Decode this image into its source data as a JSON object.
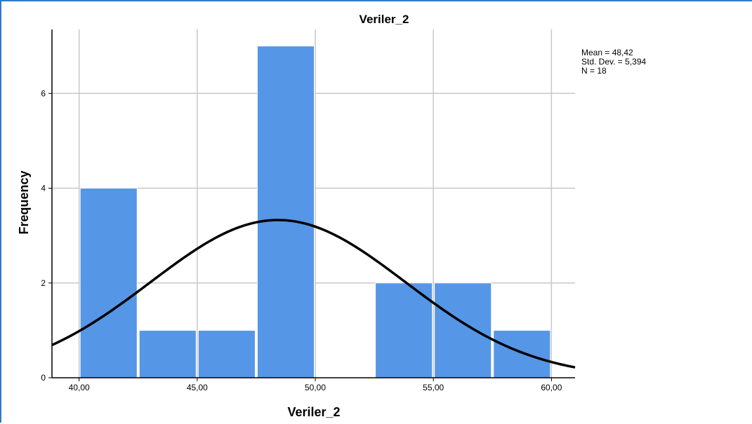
{
  "chart_data": {
    "type": "bar",
    "title": "Veriler_2",
    "xlabel": "Veriler_2",
    "ylabel": "Frequency",
    "xlim": [
      38.85,
      61.0
    ],
    "ylim": [
      0,
      7.35
    ],
    "x_ticks": [
      {
        "value": 40,
        "label": "40,00"
      },
      {
        "value": 45,
        "label": "45,00"
      },
      {
        "value": 50,
        "label": "50,00"
      },
      {
        "value": 55,
        "label": "55,00"
      },
      {
        "value": 60,
        "label": "60,00"
      }
    ],
    "y_ticks": [
      {
        "value": 0,
        "label": "0"
      },
      {
        "value": 2,
        "label": "2"
      },
      {
        "value": 4,
        "label": "4"
      },
      {
        "value": 6,
        "label": "6"
      }
    ],
    "bins": [
      {
        "start": 40.0,
        "end": 42.5,
        "count": 4
      },
      {
        "start": 42.5,
        "end": 45.0,
        "count": 1
      },
      {
        "start": 45.0,
        "end": 47.5,
        "count": 1
      },
      {
        "start": 47.5,
        "end": 50.0,
        "count": 7
      },
      {
        "start": 50.0,
        "end": 52.5,
        "count": 0
      },
      {
        "start": 52.5,
        "end": 55.0,
        "count": 2
      },
      {
        "start": 55.0,
        "end": 57.5,
        "count": 2
      },
      {
        "start": 57.5,
        "end": 60.0,
        "count": 1
      }
    ],
    "normal_curve": {
      "mean": 48.42,
      "std_dev": 5.394,
      "n": 18,
      "bin_width": 2.5
    },
    "stats_lines": [
      "Mean = 48,42",
      "Std. Dev. = 5,394",
      "N = 18"
    ],
    "grid": true,
    "legend_placement": "top-right",
    "colors": {
      "bar_fill": "#5596e6",
      "bar_stroke": "#ffffff",
      "grid": "#c8c8c8",
      "axis": "#000000",
      "curve": "#000000",
      "frame_border": "#2f78c8"
    }
  }
}
